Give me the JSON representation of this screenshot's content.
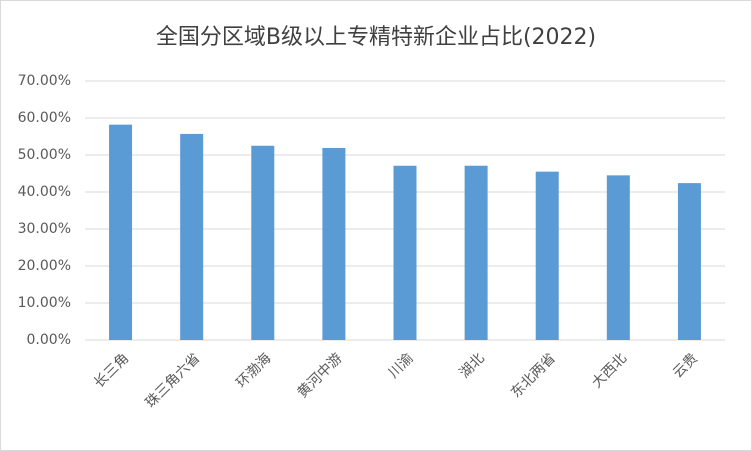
{
  "chart_data": {
    "type": "bar",
    "title": "全国分区域B级以上专精特新企业占比(2022)",
    "categories": [
      "长三角",
      "珠三角六省",
      "环渤海",
      "黄河中游",
      "川渝",
      "湖北",
      "东北两省",
      "大西北",
      "云贵"
    ],
    "values": [
      58.2,
      55.7,
      52.5,
      51.9,
      47.1,
      47.1,
      45.5,
      44.5,
      42.4
    ],
    "color": "#5b9bd5",
    "ylim": [
      0,
      70
    ],
    "yticks": [
      {
        "value": 0,
        "label": "0.00%"
      },
      {
        "value": 10,
        "label": "10.00%"
      },
      {
        "value": 20,
        "label": "20.00%"
      },
      {
        "value": 30,
        "label": "30.00%"
      },
      {
        "value": 40,
        "label": "40.00%"
      },
      {
        "value": 50,
        "label": "50.00%"
      },
      {
        "value": 60,
        "label": "60.00%"
      },
      {
        "value": 70,
        "label": "70.00%"
      }
    ],
    "grid": true
  }
}
